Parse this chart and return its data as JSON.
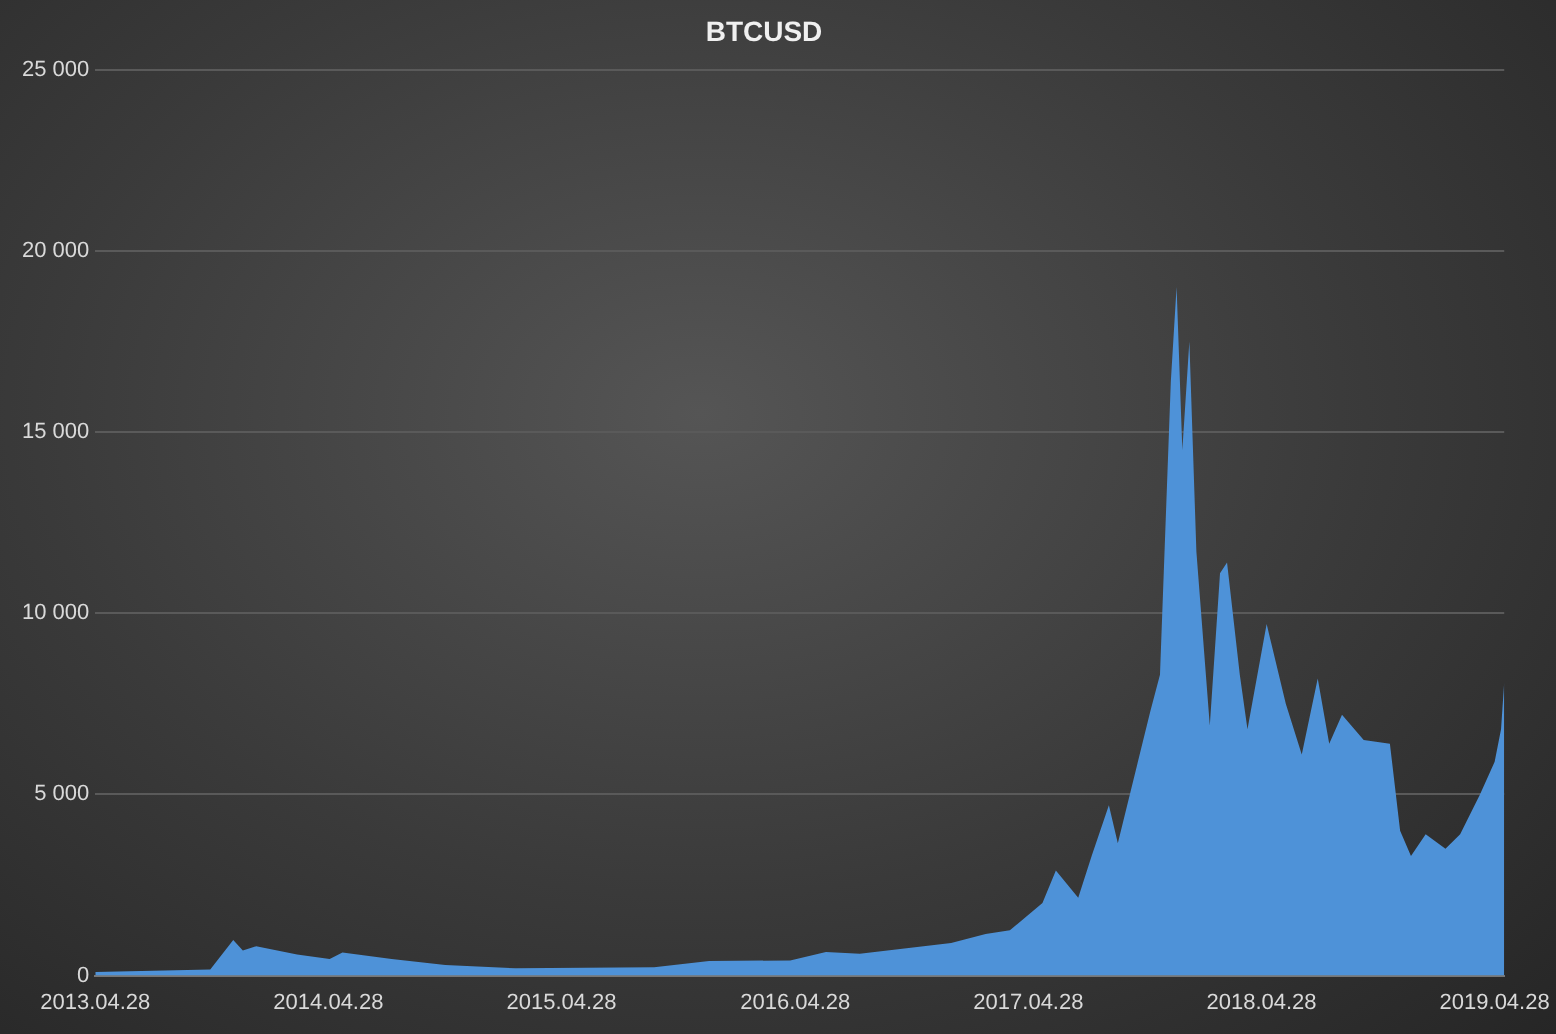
{
  "chart_data": {
    "type": "area",
    "title": "BTCUSD",
    "x": [
      "2013-04-28",
      "2013-10-25",
      "2013-11-30",
      "2013-12-15",
      "2014-01-05",
      "2014-03-10",
      "2014-04-30",
      "2014-05-20",
      "2014-08-05",
      "2014-10-28",
      "2015-02-15",
      "2015-09-20",
      "2015-12-15",
      "2016-04-20",
      "2016-06-15",
      "2016-08-07",
      "2016-12-28",
      "2017-02-20",
      "2017-03-30",
      "2017-05-20",
      "2017-06-10",
      "2017-07-15",
      "2017-08-05",
      "2017-09-01",
      "2017-09-15",
      "2017-10-15",
      "2017-11-05",
      "2017-11-20",
      "2017-12-07",
      "2017-12-16",
      "2017-12-25",
      "2018-01-05",
      "2018-01-16",
      "2018-02-06",
      "2018-02-22",
      "2018-03-05",
      "2018-03-25",
      "2018-04-06",
      "2018-05-06",
      "2018-06-05",
      "2018-06-30",
      "2018-07-25",
      "2018-08-12",
      "2018-09-01",
      "2018-10-05",
      "2018-11-15",
      "2018-12-01",
      "2018-12-18",
      "2019-01-10",
      "2019-02-10",
      "2019-03-05",
      "2019-04-05",
      "2019-04-28",
      "2019-05-08",
      "2019-05-13"
    ],
    "series": [
      {
        "color": "#4e92d8",
        "values": [
          100,
          170,
          980,
          690,
          810,
          580,
          460,
          640,
          460,
          290,
          200,
          230,
          400,
          420,
          650,
          600,
          900,
          1150,
          1250,
          2000,
          2900,
          2150,
          3300,
          4700,
          3650,
          5800,
          7300,
          8300,
          16400,
          19000,
          14500,
          17500,
          11700,
          6900,
          11100,
          11400,
          8300,
          6800,
          9700,
          7500,
          6100,
          8200,
          6400,
          7200,
          6500,
          6400,
          4000,
          3300,
          3900,
          3500,
          3900,
          5000,
          5900,
          6800,
          8100
        ]
      }
    ],
    "xlim": [
      "2013-04-28",
      "2019-05-13"
    ],
    "xticks": [
      {
        "value": "2013-04-28",
        "label": "2013.04.28"
      },
      {
        "value": "2014-04-28",
        "label": "2014.04.28"
      },
      {
        "value": "2015-04-28",
        "label": "2015.04.28"
      },
      {
        "value": "2016-04-28",
        "label": "2016.04.28"
      },
      {
        "value": "2017-04-28",
        "label": "2017.04.28"
      },
      {
        "value": "2018-04-28",
        "label": "2018.04.28"
      },
      {
        "value": "2019-04-28",
        "label": "2019.04.28"
      }
    ],
    "ylim": [
      0,
      25000
    ],
    "yticks": [
      {
        "value": 0,
        "label": "0"
      },
      {
        "value": 5000,
        "label": "5 000"
      },
      {
        "value": 10000,
        "label": "10 000"
      },
      {
        "value": 15000,
        "label": "15 000"
      },
      {
        "value": 20000,
        "label": "20 000"
      },
      {
        "value": 25000,
        "label": "25 000"
      }
    ],
    "grid": "y",
    "legend": false,
    "marker": "none"
  }
}
